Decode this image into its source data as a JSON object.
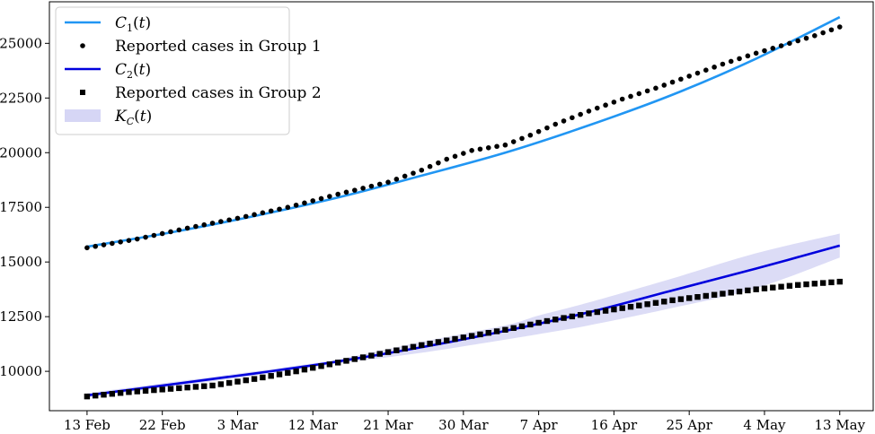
{
  "chart_data": {
    "type": "line",
    "x_axis": {
      "type": "date",
      "tick_labels": [
        "13 Feb",
        "22 Feb",
        "3 Mar",
        "12 Mar",
        "21 Mar",
        "30 Mar",
        "7 Apr",
        "16 Apr",
        "25 Apr",
        "4 May",
        "13 May"
      ],
      "tick_values": [
        0,
        9,
        18,
        27,
        36,
        45,
        54,
        63,
        72,
        81,
        90
      ],
      "xlim": [
        -4.5,
        94
      ]
    },
    "y_axis": {
      "tick_labels": [
        "10000",
        "12500",
        "15000",
        "17500",
        "20000",
        "22500",
        "25000"
      ],
      "tick_values": [
        10000,
        12500,
        15000,
        17500,
        20000,
        22500,
        25000
      ],
      "ylim": [
        8200,
        26900
      ]
    },
    "grid": false,
    "legend_position": "top-left",
    "series": [
      {
        "name": "C_1(t)",
        "label_parts": [
          {
            "t": "C",
            "style": "italic"
          },
          {
            "t": "1",
            "style": "sub"
          },
          {
            "t": "(",
            "style": "normal"
          },
          {
            "t": "t",
            "style": "italic"
          },
          {
            "t": ")",
            "style": "normal"
          }
        ],
        "kind": "line",
        "color": "#2196f3",
        "x": [
          0,
          10,
          20,
          30,
          40,
          50,
          60,
          70,
          80,
          90
        ],
        "y": [
          15700,
          16350,
          17100,
          17950,
          18950,
          20000,
          21250,
          22650,
          24300,
          26200
        ]
      },
      {
        "name": "Reported cases in Group 1",
        "kind": "points",
        "marker": "circle",
        "color": "#000000",
        "x": [
          0,
          6,
          12,
          18,
          24,
          30,
          36,
          40,
          43,
          46,
          50,
          53,
          56,
          60,
          64,
          68,
          72,
          76,
          80,
          84,
          87,
          90
        ],
        "y": [
          15650,
          16050,
          16550,
          17000,
          17500,
          18100,
          18650,
          19200,
          19700,
          20100,
          20350,
          20800,
          21300,
          21900,
          22450,
          22950,
          23500,
          24050,
          24550,
          25000,
          25350,
          25750
        ]
      },
      {
        "name": "C_2(t)",
        "label_parts": [
          {
            "t": "C",
            "style": "italic"
          },
          {
            "t": "2",
            "style": "sub"
          },
          {
            "t": "(",
            "style": "normal"
          },
          {
            "t": "t",
            "style": "italic"
          },
          {
            "t": ")",
            "style": "normal"
          }
        ],
        "kind": "line",
        "color": "#0000dd",
        "x": [
          0,
          10,
          20,
          30,
          40,
          50,
          60,
          70,
          80,
          90
        ],
        "y": [
          8900,
          9400,
          9900,
          10450,
          11100,
          11850,
          12700,
          13700,
          14700,
          15750
        ]
      },
      {
        "name": "Reported cases in Group 2",
        "kind": "points",
        "marker": "square",
        "color": "#000000",
        "x": [
          0,
          5,
          10,
          15,
          20,
          25,
          30,
          35,
          40,
          45,
          50,
          55,
          60,
          65,
          70,
          75,
          80,
          85,
          90
        ],
        "y": [
          8850,
          9050,
          9200,
          9350,
          9650,
          10000,
          10400,
          10800,
          11200,
          11550,
          11900,
          12300,
          12650,
          12950,
          13250,
          13500,
          13750,
          13950,
          14100
        ]
      },
      {
        "name": "K_C(t)",
        "label_parts": [
          {
            "t": "K",
            "style": "italic"
          },
          {
            "t": "C",
            "style": "sub-italic"
          },
          {
            "t": "(",
            "style": "normal"
          },
          {
            "t": "t",
            "style": "italic"
          },
          {
            "t": ")",
            "style": "normal"
          }
        ],
        "kind": "band",
        "color": "#d6d6f5",
        "x": [
          0,
          10,
          20,
          30,
          40,
          50,
          54,
          60,
          70,
          80,
          90
        ],
        "y_low": [
          8800,
          9300,
          9800,
          10350,
          10850,
          11450,
          11700,
          12100,
          12900,
          13800,
          15200
        ],
        "y_high": [
          9000,
          9500,
          10000,
          10550,
          11350,
          12100,
          12550,
          13150,
          14250,
          15400,
          16300
        ]
      }
    ]
  }
}
